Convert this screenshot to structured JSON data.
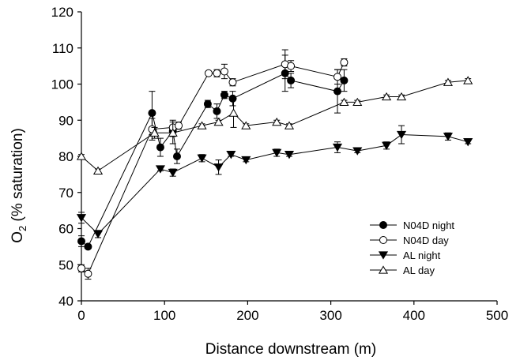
{
  "chart_data": {
    "type": "scatter",
    "xlabel": "Distance downstream (m)",
    "ylabel_main": "O",
    "ylabel_sub": "2",
    "ylabel_rest": " (% saturation)",
    "xlim": [
      0,
      500
    ],
    "ylim": [
      40,
      120
    ],
    "x_ticks": [
      0,
      100,
      200,
      300,
      400,
      500
    ],
    "y_ticks": [
      40,
      50,
      60,
      70,
      80,
      90,
      100,
      110,
      120
    ],
    "grid": false,
    "legend_position": "lower-right",
    "series": [
      {
        "name": "N04D night",
        "marker": "circle-filled",
        "points": [
          {
            "x": 0,
            "y": 56.5,
            "err": 1.5
          },
          {
            "x": 8,
            "y": 55,
            "err": 0.5
          },
          {
            "x": 85,
            "y": 92,
            "err": 6
          },
          {
            "x": 95,
            "y": 82.5,
            "err": 2.5
          },
          {
            "x": 110,
            "y": 87,
            "err": 1.5
          },
          {
            "x": 115,
            "y": 80,
            "err": 2
          },
          {
            "x": 152,
            "y": 94.5,
            "err": 1
          },
          {
            "x": 163,
            "y": 92.5,
            "err": 2
          },
          {
            "x": 172,
            "y": 97,
            "err": 1
          },
          {
            "x": 182,
            "y": 96,
            "err": 2
          },
          {
            "x": 245,
            "y": 103,
            "err": 5
          },
          {
            "x": 252,
            "y": 101,
            "err": 2
          },
          {
            "x": 308,
            "y": 98,
            "err": 6
          },
          {
            "x": 316,
            "y": 101,
            "err": 3
          }
        ]
      },
      {
        "name": "N04D day",
        "marker": "circle-open",
        "points": [
          {
            "x": 0,
            "y": 49,
            "err": 1
          },
          {
            "x": 8,
            "y": 47.5,
            "err": 1.5
          },
          {
            "x": 85,
            "y": 87.5,
            "err": 3
          },
          {
            "x": 110,
            "y": 88,
            "err": 2
          },
          {
            "x": 117,
            "y": 88.5,
            "err": 1
          },
          {
            "x": 153,
            "y": 103,
            "err": 0.5
          },
          {
            "x": 163,
            "y": 103,
            "err": 1
          },
          {
            "x": 172,
            "y": 103.5,
            "err": 2
          },
          {
            "x": 182,
            "y": 100.5,
            "err": 1
          },
          {
            "x": 245,
            "y": 105.5,
            "err": 4
          },
          {
            "x": 252,
            "y": 105,
            "err": 1.5
          },
          {
            "x": 308,
            "y": 102,
            "err": 2
          },
          {
            "x": 316,
            "y": 106,
            "err": 1
          }
        ]
      },
      {
        "name": "AL night",
        "marker": "triangle-down-filled",
        "points": [
          {
            "x": 0,
            "y": 63,
            "err": 1.5
          },
          {
            "x": 20,
            "y": 58.5,
            "err": 1
          },
          {
            "x": 95,
            "y": 76.5,
            "err": 0.5
          },
          {
            "x": 110,
            "y": 75.5,
            "err": 1
          },
          {
            "x": 145,
            "y": 79.5,
            "err": 1
          },
          {
            "x": 165,
            "y": 77,
            "err": 2
          },
          {
            "x": 180,
            "y": 80.5,
            "err": 0.5
          },
          {
            "x": 198,
            "y": 79,
            "err": 0.5
          },
          {
            "x": 235,
            "y": 81,
            "err": 1
          },
          {
            "x": 250,
            "y": 80.5,
            "err": 0.5
          },
          {
            "x": 308,
            "y": 82.5,
            "err": 1.5
          },
          {
            "x": 332,
            "y": 81.5,
            "err": 0.5
          },
          {
            "x": 367,
            "y": 83,
            "err": 1
          },
          {
            "x": 385,
            "y": 86,
            "err": 2.5
          },
          {
            "x": 441,
            "y": 85.5,
            "err": 1
          },
          {
            "x": 465,
            "y": 84,
            "err": 0.5
          }
        ]
      },
      {
        "name": "AL day",
        "marker": "triangle-up-open",
        "points": [
          {
            "x": 0,
            "y": 80,
            "err": 0.5
          },
          {
            "x": 20,
            "y": 76,
            "err": 0.5
          },
          {
            "x": 88,
            "y": 86.5,
            "err": 1.5
          },
          {
            "x": 110,
            "y": 86.5,
            "err": 3
          },
          {
            "x": 145,
            "y": 88.5,
            "err": 0.5
          },
          {
            "x": 165,
            "y": 89.5,
            "err": 0.5
          },
          {
            "x": 183,
            "y": 92,
            "err": 4
          },
          {
            "x": 198,
            "y": 88.5,
            "err": 0.5
          },
          {
            "x": 235,
            "y": 89.5,
            "err": 0.5
          },
          {
            "x": 250,
            "y": 88.5,
            "err": 0.5
          },
          {
            "x": 316,
            "y": 95,
            "err": 0.5
          },
          {
            "x": 332,
            "y": 95,
            "err": 0.5
          },
          {
            "x": 367,
            "y": 96.5,
            "err": 0.5
          },
          {
            "x": 385,
            "y": 96.5,
            "err": 0.5
          },
          {
            "x": 441,
            "y": 100.5,
            "err": 0.5
          },
          {
            "x": 465,
            "y": 101,
            "err": 0.5
          }
        ]
      }
    ]
  }
}
